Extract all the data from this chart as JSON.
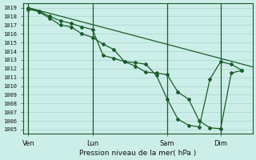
{
  "xlabel": "Pression niveau de la mer( hPa )",
  "background_color": "#cceee8",
  "grid_major_color": "#aad4cc",
  "grid_minor_color": "#bbddd8",
  "line_color": "#1a5c2a",
  "ylim": [
    1004.5,
    1019.5
  ],
  "yticks": [
    1005,
    1006,
    1007,
    1008,
    1009,
    1010,
    1011,
    1012,
    1013,
    1014,
    1015,
    1016,
    1017,
    1018,
    1019
  ],
  "xtick_labels": [
    "Ven",
    "Lun",
    "Sam",
    "Dim"
  ],
  "xtick_positions": [
    0,
    6,
    13,
    18
  ],
  "xlim": [
    -0.5,
    21
  ],
  "series1_x": [
    0,
    1,
    2,
    3,
    4,
    5,
    6,
    7,
    8,
    9,
    10,
    11,
    12,
    13,
    14,
    15,
    16,
    17,
    18,
    19,
    20
  ],
  "series1_y": [
    1018.8,
    1018.6,
    1018.0,
    1017.5,
    1017.2,
    1016.8,
    1016.5,
    1013.5,
    1013.2,
    1012.8,
    1012.3,
    1011.6,
    1011.5,
    1011.3,
    1009.3,
    1008.5,
    1006.0,
    1005.2,
    1005.1,
    1011.5,
    1011.8
  ],
  "series2_x": [
    0,
    1,
    2,
    3,
    4,
    5,
    6,
    7,
    8,
    9,
    10,
    11,
    12,
    13,
    14,
    15,
    16,
    17,
    18,
    19,
    20
  ],
  "series2_y": [
    1019.0,
    1018.5,
    1017.8,
    1017.0,
    1016.8,
    1016.0,
    1015.6,
    1014.8,
    1014.2,
    1012.8,
    1012.7,
    1012.5,
    1011.2,
    1008.5,
    1006.2,
    1005.5,
    1005.3,
    1010.8,
    1012.8,
    1012.5,
    1011.8
  ],
  "series3_x": [
    0,
    21
  ],
  "series3_y": [
    1019.0,
    1012.2
  ],
  "vline_positions": [
    0,
    6,
    13,
    18
  ],
  "marker": "D",
  "markersize": 2.0
}
